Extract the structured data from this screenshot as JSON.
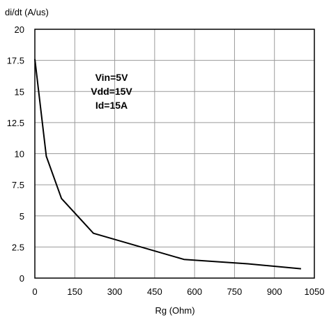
{
  "chart_data": {
    "type": "line",
    "title": "",
    "ylabel": "di/dt (A/us)",
    "xlabel": "Rg (Ohm)",
    "xlim": [
      0,
      1050
    ],
    "ylim": [
      0,
      20
    ],
    "xticks": [
      0,
      150,
      300,
      450,
      600,
      750,
      900,
      1050
    ],
    "xtick_labels": [
      "0",
      "150",
      "300",
      "450",
      "600",
      "750",
      "900",
      "1050"
    ],
    "yticks": [
      0,
      2.5,
      5,
      7.5,
      10,
      12.5,
      15,
      17.5,
      20
    ],
    "ytick_labels": [
      "0",
      "2.5",
      "5",
      "7.5",
      "10",
      "12.5",
      "15",
      "17.5",
      "20"
    ],
    "grid": true,
    "legend": "none",
    "annotations": [
      "Vin=5V",
      "Vdd=15V",
      "Id=15A"
    ],
    "series": [
      {
        "x": [
          0,
          43,
          100,
          220,
          560,
          800,
          1000
        ],
        "y": [
          17.6,
          9.8,
          6.4,
          3.6,
          1.5,
          1.15,
          0.75
        ],
        "color": "#000000"
      }
    ]
  }
}
